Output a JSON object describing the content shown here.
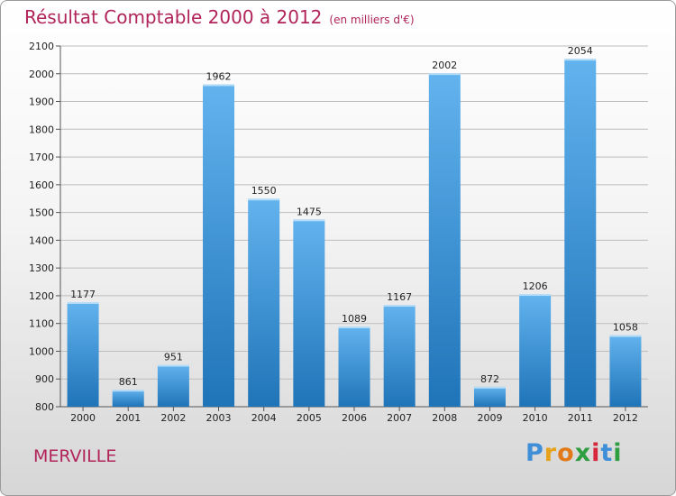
{
  "header": {
    "title": "Résultat Comptable 2000 à 2012",
    "subtitle": "(en milliers d'€)"
  },
  "footer": {
    "location": "MERVILLE",
    "brand_letters": [
      "P",
      "r",
      "o",
      "x",
      "i",
      "t",
      "i"
    ],
    "brand_colors": [
      "#3f8fd8",
      "#e6a21b",
      "#e07a1a",
      "#2f9e41",
      "#d6273d",
      "#3f8fd8",
      "#2f9e41"
    ]
  },
  "colors": {
    "bar_light": "#62b3ee",
    "bar_dark": "#1f74b8",
    "grid": "#bdbdbd",
    "text": "#222222"
  },
  "chart_data": {
    "type": "bar",
    "title": "Résultat Comptable 2000 à 2012",
    "subtitle": "(en milliers d'€)",
    "categories": [
      "2000",
      "2001",
      "2002",
      "2003",
      "2004",
      "2005",
      "2006",
      "2007",
      "2008",
      "2009",
      "2010",
      "2011",
      "2012"
    ],
    "values": [
      1177,
      861,
      951,
      1962,
      1550,
      1475,
      1089,
      1167,
      2002,
      872,
      1206,
      2054,
      1058
    ],
    "ylim": [
      800,
      2100
    ],
    "yticks": [
      800,
      900,
      1000,
      1100,
      1200,
      1300,
      1400,
      1500,
      1600,
      1700,
      1800,
      1900,
      2000,
      2100
    ],
    "grid": true,
    "data_labels": true
  }
}
